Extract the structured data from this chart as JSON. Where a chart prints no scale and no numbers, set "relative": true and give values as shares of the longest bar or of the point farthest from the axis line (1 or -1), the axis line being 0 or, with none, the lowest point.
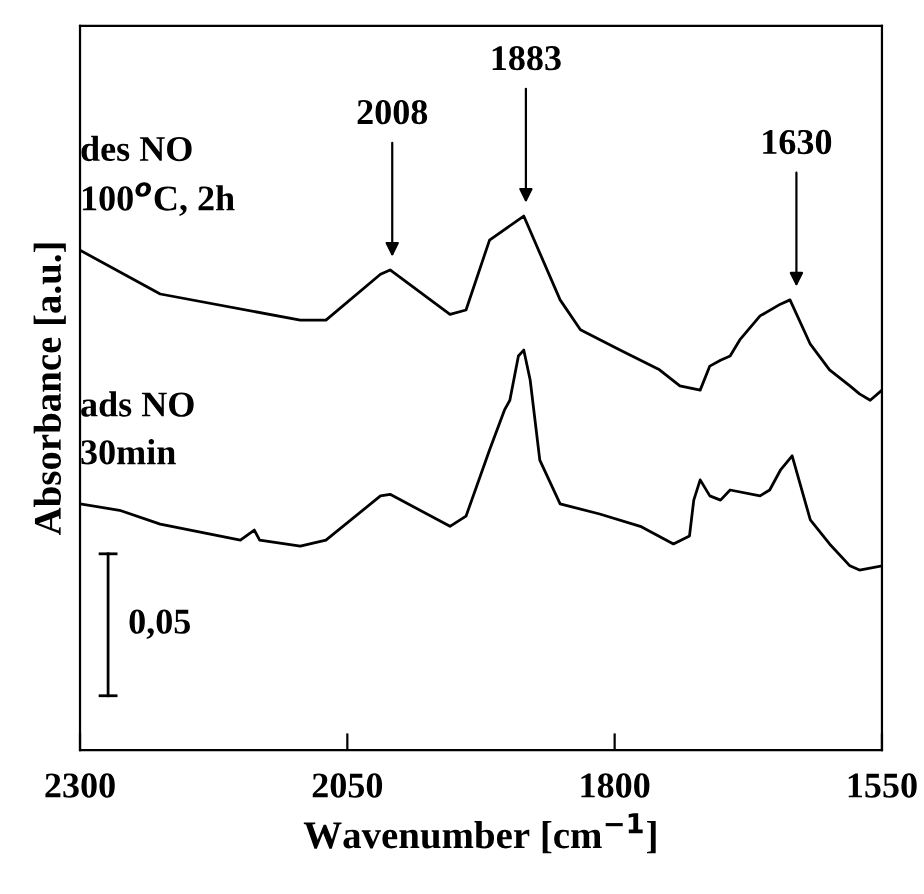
{
  "chart_data": {
    "type": "line",
    "relative": true,
    "xlabel": "Wavenumber [cm$^{−1}$]",
    "ylabel": "Absorbance [a.u.]",
    "xlim": [
      2300,
      1550
    ],
    "xticks": [
      2300,
      2050,
      1800,
      1550
    ],
    "tick_labels": "x",
    "grid": false,
    "legend": false,
    "marker": "none",
    "line_style": "solid",
    "series": [
      {
        "name": "des NO\n100$^{o}$C, 2h",
        "color": "#000000",
        "x": [
          2300,
          2225,
          2094,
          2070,
          2019,
          2010,
          1954,
          1939,
          1917,
          1885,
          1851,
          1832,
          1795,
          1758,
          1739,
          1720,
          1711,
          1701,
          1692,
          1683,
          1664,
          1645,
          1636,
          1617,
          1599,
          1580,
          1571,
          1561,
          1550
        ],
        "values": [
          0.936,
          0.854,
          0.805,
          0.805,
          0.891,
          0.899,
          0.816,
          0.824,
          0.955,
          1.0,
          0.843,
          0.787,
          0.749,
          0.712,
          0.682,
          0.674,
          0.719,
          0.73,
          0.738,
          0.768,
          0.813,
          0.835,
          0.843,
          0.76,
          0.712,
          0.682,
          0.667,
          0.655,
          0.674
        ]
      },
      {
        "name": "ads NO\n30min",
        "color": "#000000",
        "x": [
          2300,
          2263,
          2225,
          2150,
          2137,
          2132,
          2094,
          2070,
          2019,
          2010,
          1954,
          1939,
          1917,
          1903,
          1898,
          1890,
          1885,
          1879,
          1870,
          1851,
          1814,
          1776,
          1745,
          1730,
          1726,
          1720,
          1711,
          1701,
          1692,
          1664,
          1655,
          1645,
          1634,
          1617,
          1599,
          1580,
          1571,
          1550
        ],
        "values": [
          0.461,
          0.449,
          0.423,
          0.393,
          0.412,
          0.393,
          0.382,
          0.393,
          0.476,
          0.479,
          0.419,
          0.438,
          0.562,
          0.637,
          0.655,
          0.738,
          0.749,
          0.693,
          0.543,
          0.461,
          0.442,
          0.419,
          0.386,
          0.401,
          0.468,
          0.506,
          0.476,
          0.468,
          0.487,
          0.476,
          0.487,
          0.524,
          0.551,
          0.431,
          0.386,
          0.345,
          0.337,
          0.345
        ]
      }
    ],
    "annotations": [
      {
        "text": "2008",
        "x": 2008,
        "y": 0.899
      },
      {
        "text": "1883",
        "x": 1883,
        "y": 1.0
      },
      {
        "text": "1630",
        "x": 1630,
        "y": 0.843
      },
      "0,05"
    ]
  }
}
